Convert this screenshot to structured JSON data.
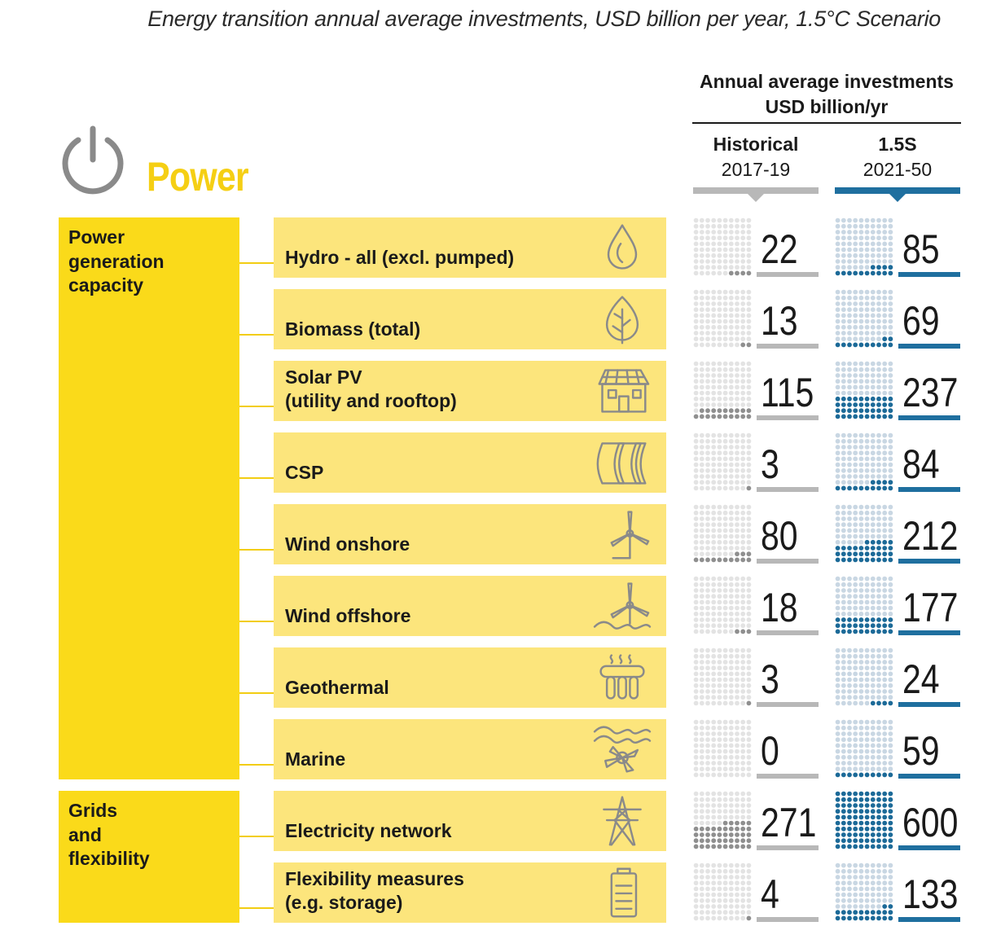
{
  "subtitle": "Energy transition annual average investments, USD billion per year, 1.5°C Scenario",
  "sector": {
    "title": "Power",
    "icon": "power-icon"
  },
  "column_header": {
    "line1": "Annual average investments",
    "line2": "USD billion/yr"
  },
  "periods": [
    {
      "name": "Historical",
      "years": "2017-19",
      "color": "#b8b8b8",
      "dot_color": "#8f8f8f",
      "empty_color": "#e3e3e3"
    },
    {
      "name": "1.5S",
      "years": "2021-50",
      "color": "#1f6f9f",
      "dot_color": "#1c6a98",
      "empty_color": "#c9d7e3"
    }
  ],
  "groups": [
    {
      "label": "Power\ngeneration\ncapacity",
      "rows": 8
    },
    {
      "label": "Grids\nand\nflexibility",
      "rows": 2
    }
  ],
  "colors": {
    "group_yellow": "#fada1a",
    "row_yellow": "#fce57c",
    "title_yellow": "#f5cf14",
    "icon_grey": "#8a8a8a"
  },
  "chart_data": {
    "type": "table",
    "title": "Energy transition annual average investments, USD billion per year, 1.5°C Scenario",
    "unit": "USD billion/yr",
    "columns": [
      "Historical 2017-19",
      "1.5S 2021-50"
    ],
    "rows": [
      {
        "label": "Hydro - all (excl. pumped)",
        "icon": "water-drop-icon",
        "historical": 22,
        "scenario": 85
      },
      {
        "label": "Biomass (total)",
        "icon": "leaf-icon",
        "historical": 13,
        "scenario": 69
      },
      {
        "label": "Solar PV\n(utility and rooftop)",
        "icon": "solar-house-icon",
        "historical": 115,
        "scenario": 237
      },
      {
        "label": "CSP",
        "icon": "csp-mirror-icon",
        "historical": 3,
        "scenario": 84
      },
      {
        "label": "Wind onshore",
        "icon": "wind-turbine-icon",
        "historical": 80,
        "scenario": 212
      },
      {
        "label": "Wind offshore",
        "icon": "offshore-wind-icon",
        "historical": 18,
        "scenario": 177
      },
      {
        "label": "Geothermal",
        "icon": "geothermal-icon",
        "historical": 3,
        "scenario": 24
      },
      {
        "label": "Marine",
        "icon": "marine-wave-icon",
        "historical": 0,
        "scenario": 59
      },
      {
        "label": "Electricity network",
        "icon": "transmission-tower-icon",
        "historical": 271,
        "scenario": 600
      },
      {
        "label": "Flexibility measures\n(e.g. storage)",
        "icon": "battery-icon",
        "historical": 4,
        "scenario": 133
      }
    ],
    "dot_grid": {
      "dots_total": 100,
      "units_per_dot": 6
    }
  }
}
